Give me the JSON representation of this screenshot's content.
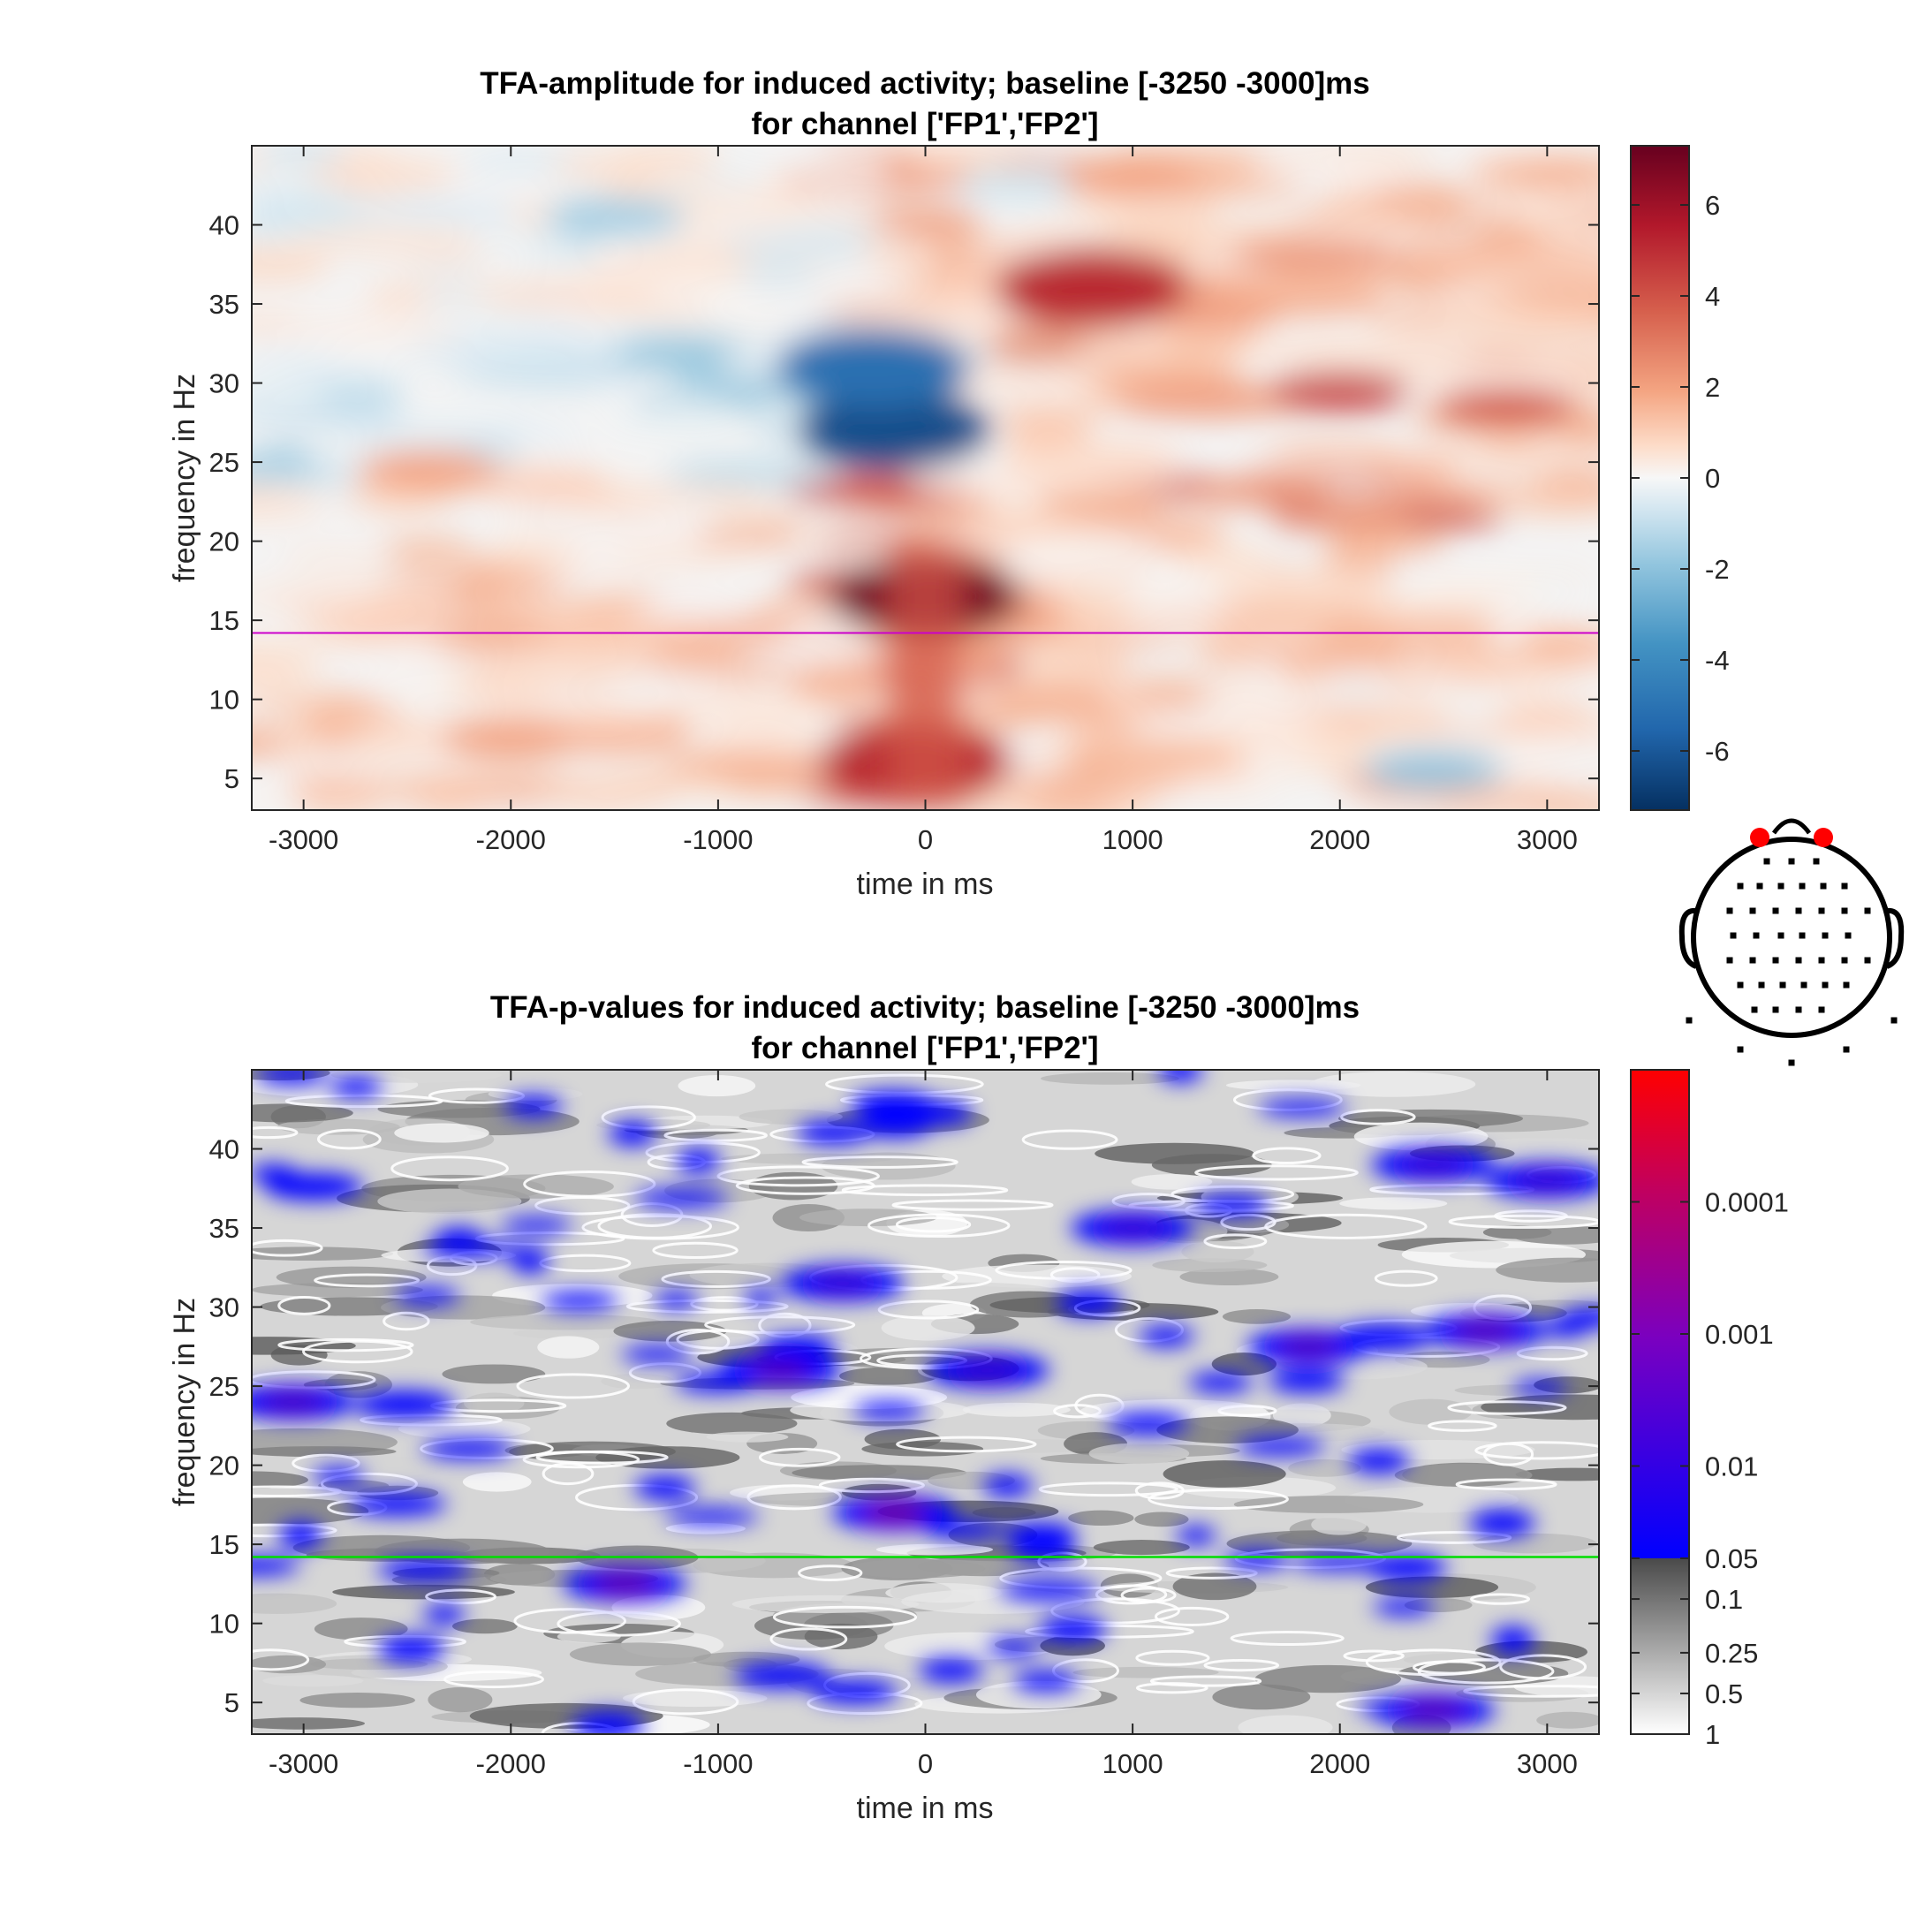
{
  "chart_data": [
    {
      "type": "heatmap",
      "name": "amplitude",
      "title": "TFA-amplitude for induced activity; baseline [-3250 -3000]ms",
      "subtitle": "for channel ['FP1','FP2']",
      "xlabel": "time in ms",
      "ylabel": "frequency in Hz",
      "xlim": [
        -3250,
        3250
      ],
      "ylim": [
        3,
        45
      ],
      "xticks": [
        -3000,
        -2000,
        -1000,
        0,
        1000,
        2000,
        3000
      ],
      "yticks": [
        5,
        10,
        15,
        20,
        25,
        30,
        35,
        40
      ],
      "marker_line_frequency": 14.2,
      "marker_line_color": "#cc00cc",
      "colorbar": {
        "range": [
          -7.3,
          7.3
        ],
        "ticks": [
          -6,
          -4,
          -2,
          0,
          2,
          4,
          6
        ],
        "colormap": [
          "#053061",
          "#2166ac",
          "#4393c3",
          "#92c5de",
          "#d1e5f0",
          "#f7f7f7",
          "#fddbc7",
          "#f4a582",
          "#d6604d",
          "#b2182b",
          "#67001f"
        ]
      },
      "features": [
        {
          "t": 0,
          "f": 16.5,
          "value": 7.0
        },
        {
          "t": -50,
          "f": 6,
          "value": 5.5
        },
        {
          "t": -150,
          "f": 27,
          "value": -6.5
        },
        {
          "t": -250,
          "f": 31,
          "value": -5.5
        },
        {
          "t": 800,
          "f": 36,
          "value": 5.5
        },
        {
          "t": 2000,
          "f": 29.5,
          "value": 5.0
        },
        {
          "t": 2800,
          "f": 28.5,
          "value": 4.5
        },
        {
          "t": 2450,
          "f": 5.5,
          "value": -3.0
        },
        {
          "t": -2400,
          "f": 24.5,
          "value": 3.0
        },
        {
          "t": -2000,
          "f": 7.5,
          "value": 3.0
        },
        {
          "t": 1000,
          "f": 43,
          "value": 3.0
        },
        {
          "t": -1500,
          "f": 40.5,
          "value": -2.5
        }
      ]
    },
    {
      "type": "heatmap",
      "name": "p-values",
      "title": "TFA-p-values for induced activity; baseline [-3250 -3000]ms",
      "subtitle": "for channel ['FP1','FP2']",
      "xlabel": "time in ms",
      "ylabel": "frequency in Hz",
      "xlim": [
        -3250,
        3250
      ],
      "ylim": [
        3,
        45
      ],
      "xticks": [
        -3000,
        -2000,
        -1000,
        0,
        1000,
        2000,
        3000
      ],
      "yticks": [
        5,
        10,
        15,
        20,
        25,
        30,
        35,
        40
      ],
      "marker_line_frequency": 14.2,
      "marker_line_color": "#00dd00",
      "colorbar": {
        "scale": "log",
        "range_p": [
          1,
          1e-05
        ],
        "tick_labels": [
          "0.0001",
          "0.001",
          "0.01",
          "0.05",
          "0.1",
          "0.25",
          "0.5",
          "1"
        ],
        "tick_values": [
          0.0001,
          0.001,
          0.01,
          0.05,
          0.1,
          0.25,
          0.5,
          1
        ],
        "significant_colormap": [
          "#0000ff",
          "#8800cc",
          "#cc0066",
          "#ff0000"
        ],
        "nonsignificant_colormap": [
          "#ffffff",
          "#444444"
        ]
      },
      "significant_regions": [
        {
          "t": -150,
          "f": 17,
          "p": 0.001
        },
        {
          "t": -700,
          "f": 26,
          "p": 0.003
        },
        {
          "t": 300,
          "f": 26,
          "p": 0.01
        },
        {
          "t": 2700,
          "f": 28.5,
          "p": 0.003
        },
        {
          "t": 1850,
          "f": 27.5,
          "p": 0.004
        },
        {
          "t": 2450,
          "f": 4.5,
          "p": 0.003
        },
        {
          "t": -1450,
          "f": 12.5,
          "p": 0.002
        },
        {
          "t": -3050,
          "f": 24,
          "p": 0.005
        },
        {
          "t": -400,
          "f": 31.5,
          "p": 0.01
        },
        {
          "t": 1000,
          "f": 35,
          "p": 0.01
        },
        {
          "t": 3000,
          "f": 38,
          "p": 0.01
        },
        {
          "t": 2450,
          "f": 39,
          "p": 0.01
        }
      ]
    },
    {
      "type": "diagram",
      "name": "head-topography",
      "highlighted_channels": [
        "FP1",
        "FP2"
      ],
      "highlight_color": "#ff0000"
    }
  ]
}
